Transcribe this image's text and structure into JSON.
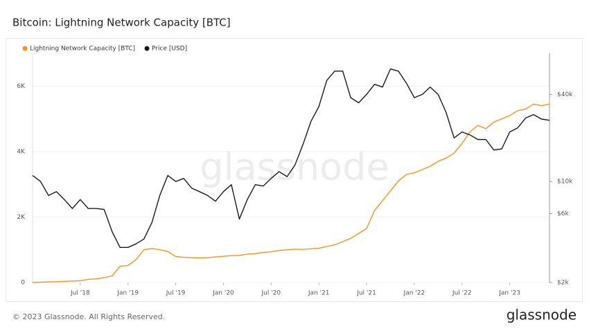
{
  "chart_data": {
    "type": "line",
    "title": "Bitcoin: Lightning Network Capacity [BTC]",
    "watermark": "glassnode",
    "x": [
      "2018-01",
      "2018-02",
      "2018-03",
      "2018-04",
      "2018-05",
      "2018-06",
      "2018-07",
      "2018-08",
      "2018-09",
      "2018-10",
      "2018-11",
      "2018-12",
      "2019-01",
      "2019-02",
      "2019-03",
      "2019-04",
      "2019-05",
      "2019-06",
      "2019-07",
      "2019-08",
      "2019-09",
      "2019-10",
      "2019-11",
      "2019-12",
      "2020-01",
      "2020-02",
      "2020-03",
      "2020-04",
      "2020-05",
      "2020-06",
      "2020-07",
      "2020-08",
      "2020-09",
      "2020-10",
      "2020-11",
      "2020-12",
      "2021-01",
      "2021-02",
      "2021-03",
      "2021-04",
      "2021-05",
      "2021-06",
      "2021-07",
      "2021-08",
      "2021-09",
      "2021-10",
      "2021-11",
      "2021-12",
      "2022-01",
      "2022-02",
      "2022-03",
      "2022-04",
      "2022-05",
      "2022-06",
      "2022-07",
      "2022-08",
      "2022-09",
      "2022-10",
      "2022-11",
      "2022-12",
      "2023-01",
      "2023-02",
      "2023-03",
      "2023-04",
      "2023-05",
      "2023-06"
    ],
    "xlim": [
      "2018-01",
      "2023-06"
    ],
    "xticks": [
      {
        "value": "2018-07",
        "label": "Jul '18"
      },
      {
        "value": "2019-01",
        "label": "Jan '19"
      },
      {
        "value": "2019-07",
        "label": "Jul '19"
      },
      {
        "value": "2020-01",
        "label": "Jan '20"
      },
      {
        "value": "2020-07",
        "label": "Jul '20"
      },
      {
        "value": "2021-01",
        "label": "Jan '21"
      },
      {
        "value": "2021-07",
        "label": "Jul '21"
      },
      {
        "value": "2022-01",
        "label": "Jan '22"
      },
      {
        "value": "2022-07",
        "label": "Jul '22"
      },
      {
        "value": "2023-01",
        "label": "Jan '23"
      }
    ],
    "ylim": [
      0,
      7000
    ],
    "yticks": [
      0,
      {
        "value": 2000,
        "label": "2K"
      },
      {
        "value": 4000,
        "label": "4K"
      },
      {
        "value": 6000,
        "label": "6K"
      }
    ],
    "y2lim": [
      2000,
      77000
    ],
    "y2log": true,
    "y2ticks": [
      {
        "value": 2000,
        "label": "$2k"
      },
      {
        "value": 6000,
        "label": "$6k"
      },
      {
        "value": 10000,
        "label": "$10k"
      },
      {
        "value": 40000,
        "label": "$40k"
      }
    ],
    "grid": true,
    "series": [
      {
        "name": "Lightning Network Capacity [BTC]",
        "color": "#f7931a",
        "values": [
          0,
          10,
          20,
          25,
          35,
          45,
          55,
          100,
          110,
          150,
          200,
          500,
          520,
          700,
          1000,
          1040,
          1000,
          950,
          790,
          770,
          760,
          750,
          760,
          780,
          800,
          820,
          830,
          870,
          880,
          920,
          940,
          980,
          1000,
          1020,
          1010,
          1030,
          1050,
          1100,
          1150,
          1250,
          1350,
          1500,
          1650,
          2200,
          2500,
          2800,
          3100,
          3300,
          3350,
          3450,
          3550,
          3700,
          3800,
          3950,
          4250,
          4600,
          4800,
          4700,
          4900,
          5000,
          5100,
          5250,
          5300,
          5450,
          5400,
          5450
        ]
      },
      {
        "name": "Price [USD]",
        "color": "#1a1a1a",
        "axis": "y2",
        "values": [
          11000,
          10000,
          8000,
          8500,
          7500,
          6500,
          7500,
          6500,
          6500,
          6400,
          4500,
          3500,
          3500,
          3700,
          4000,
          5200,
          8000,
          11000,
          10000,
          10500,
          9000,
          8500,
          8000,
          7300,
          8500,
          9500,
          5500,
          7500,
          9500,
          9300,
          10500,
          11700,
          10800,
          13000,
          18000,
          26000,
          33000,
          50000,
          58000,
          58000,
          38000,
          35000,
          40000,
          47000,
          45000,
          60000,
          58000,
          48000,
          38000,
          40000,
          45000,
          40000,
          30000,
          20000,
          22000,
          21000,
          19500,
          19500,
          16500,
          16800,
          22000,
          23500,
          27500,
          29000,
          27000,
          26500
        ]
      }
    ]
  },
  "footer": {
    "copyright": "© 2023 Glassnode. All Rights Reserved.",
    "logo": "glassnode"
  }
}
